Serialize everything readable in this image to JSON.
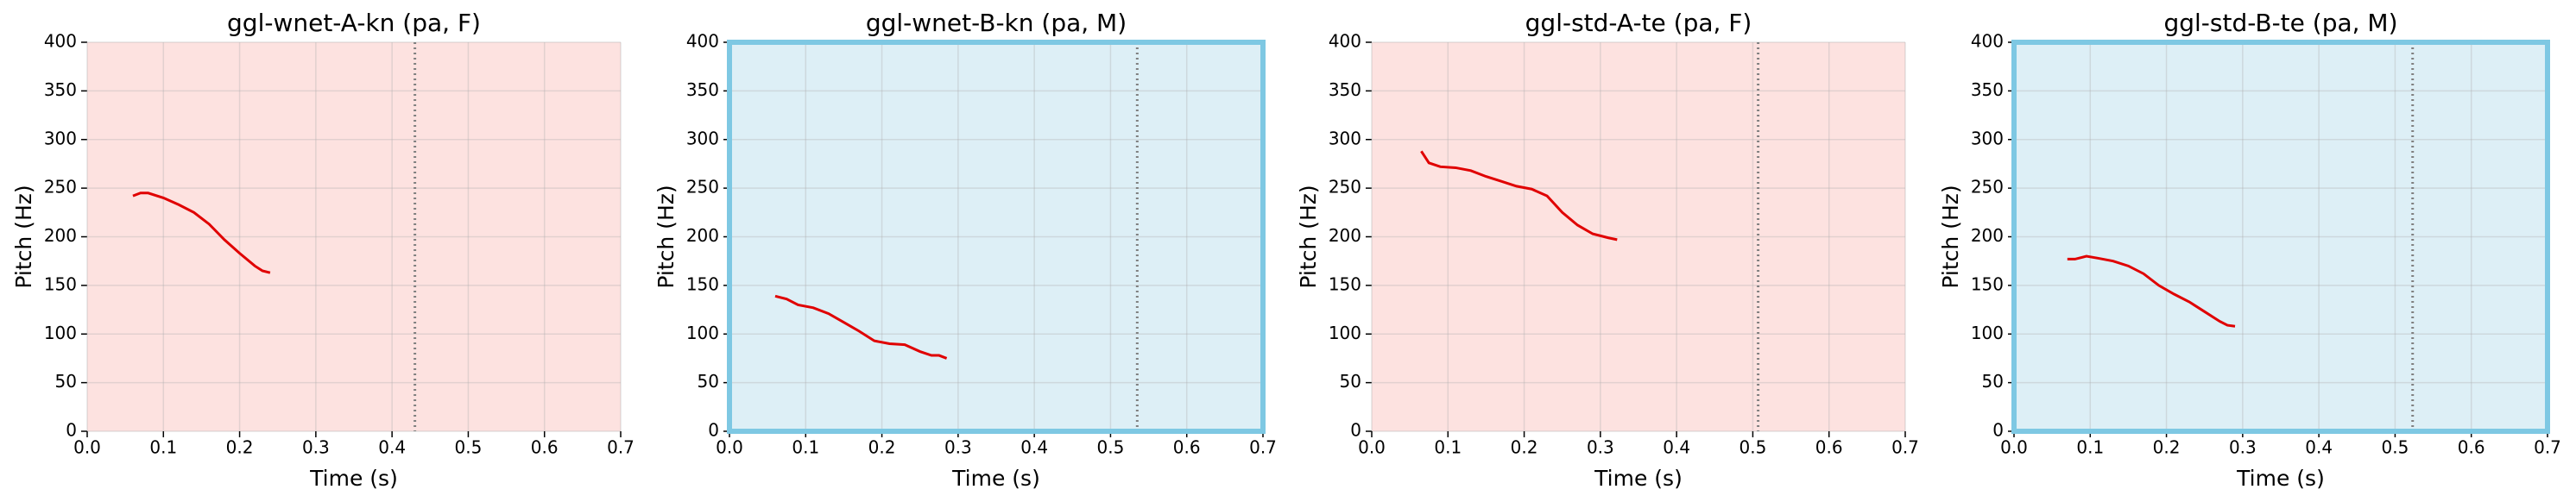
{
  "chart_data": [
    {
      "type": "line",
      "title": "ggl-wnet-A-kn (pa, F)",
      "xlabel": "Time (s)",
      "ylabel": "Pitch (Hz)",
      "x": [
        0.06,
        0.07,
        0.08,
        0.1,
        0.12,
        0.14,
        0.16,
        0.18,
        0.2,
        0.22,
        0.23,
        0.24
      ],
      "values": [
        242,
        245,
        245,
        240,
        233,
        225,
        213,
        197,
        183,
        170,
        165,
        163
      ],
      "color": "#e00000",
      "vline": 0.43,
      "background": "#fde2e0",
      "border_color": null,
      "xlim": [
        0,
        0.7
      ],
      "xticks": [
        {
          "value": 0,
          "label": "0.0"
        },
        0.1,
        0.2,
        0.3,
        0.4,
        0.5,
        0.6,
        0.7
      ],
      "ylim": [
        0,
        400
      ],
      "yticks": [
        0,
        50,
        100,
        150,
        200,
        250,
        300,
        350,
        400
      ],
      "grid": true
    },
    {
      "type": "line",
      "title": "ggl-wnet-B-kn (pa, M)",
      "xlabel": "Time (s)",
      "ylabel": "Pitch (Hz)",
      "x": [
        0.06,
        0.075,
        0.09,
        0.11,
        0.13,
        0.15,
        0.17,
        0.19,
        0.21,
        0.23,
        0.25,
        0.265,
        0.275,
        0.285
      ],
      "values": [
        139,
        136,
        130,
        127,
        121,
        112,
        103,
        93,
        90,
        89,
        82,
        78,
        78,
        75
      ],
      "color": "#e00000",
      "vline": 0.535,
      "background": "#ddeff6",
      "border_color": "#7ec8e3",
      "xlim": [
        0,
        0.7
      ],
      "xticks": [
        {
          "value": 0,
          "label": "0.0"
        },
        0.1,
        0.2,
        0.3,
        0.4,
        0.5,
        0.6,
        0.7
      ],
      "ylim": [
        0,
        400
      ],
      "yticks": [
        0,
        50,
        100,
        150,
        200,
        250,
        300,
        350,
        400
      ],
      "grid": true
    },
    {
      "type": "line",
      "title": "ggl-std-A-te (pa, F)",
      "xlabel": "Time (s)",
      "ylabel": "Pitch (Hz)",
      "x": [
        0.065,
        0.075,
        0.09,
        0.11,
        0.13,
        0.15,
        0.17,
        0.19,
        0.21,
        0.23,
        0.25,
        0.27,
        0.29,
        0.31,
        0.322
      ],
      "values": [
        288,
        276,
        272,
        271,
        268,
        262,
        257,
        252,
        249,
        242,
        225,
        212,
        203,
        199,
        197
      ],
      "color": "#e00000",
      "vline": 0.507,
      "background": "#fde2e0",
      "border_color": null,
      "xlim": [
        0,
        0.7
      ],
      "xticks": [
        {
          "value": 0,
          "label": "0.0"
        },
        0.1,
        0.2,
        0.3,
        0.4,
        0.5,
        0.6,
        0.7
      ],
      "ylim": [
        0,
        400
      ],
      "yticks": [
        0,
        50,
        100,
        150,
        200,
        250,
        300,
        350,
        400
      ],
      "grid": true
    },
    {
      "type": "line",
      "title": "ggl-std-B-te (pa, M)",
      "xlabel": "Time (s)",
      "ylabel": "Pitch (Hz)",
      "x": [
        0.07,
        0.08,
        0.095,
        0.11,
        0.13,
        0.15,
        0.17,
        0.19,
        0.21,
        0.23,
        0.25,
        0.27,
        0.28,
        0.29
      ],
      "values": [
        177,
        177,
        180,
        178,
        175,
        170,
        162,
        150,
        141,
        133,
        123,
        113,
        109,
        108
      ],
      "color": "#e00000",
      "vline": 0.523,
      "background": "#ddeff6",
      "border_color": "#7ec8e3",
      "xlim": [
        0,
        0.7
      ],
      "xticks": [
        {
          "value": 0,
          "label": "0.0"
        },
        0.1,
        0.2,
        0.3,
        0.4,
        0.5,
        0.6,
        0.7
      ],
      "ylim": [
        0,
        400
      ],
      "yticks": [
        0,
        50,
        100,
        150,
        200,
        250,
        300,
        350,
        400
      ],
      "grid": true
    }
  ]
}
